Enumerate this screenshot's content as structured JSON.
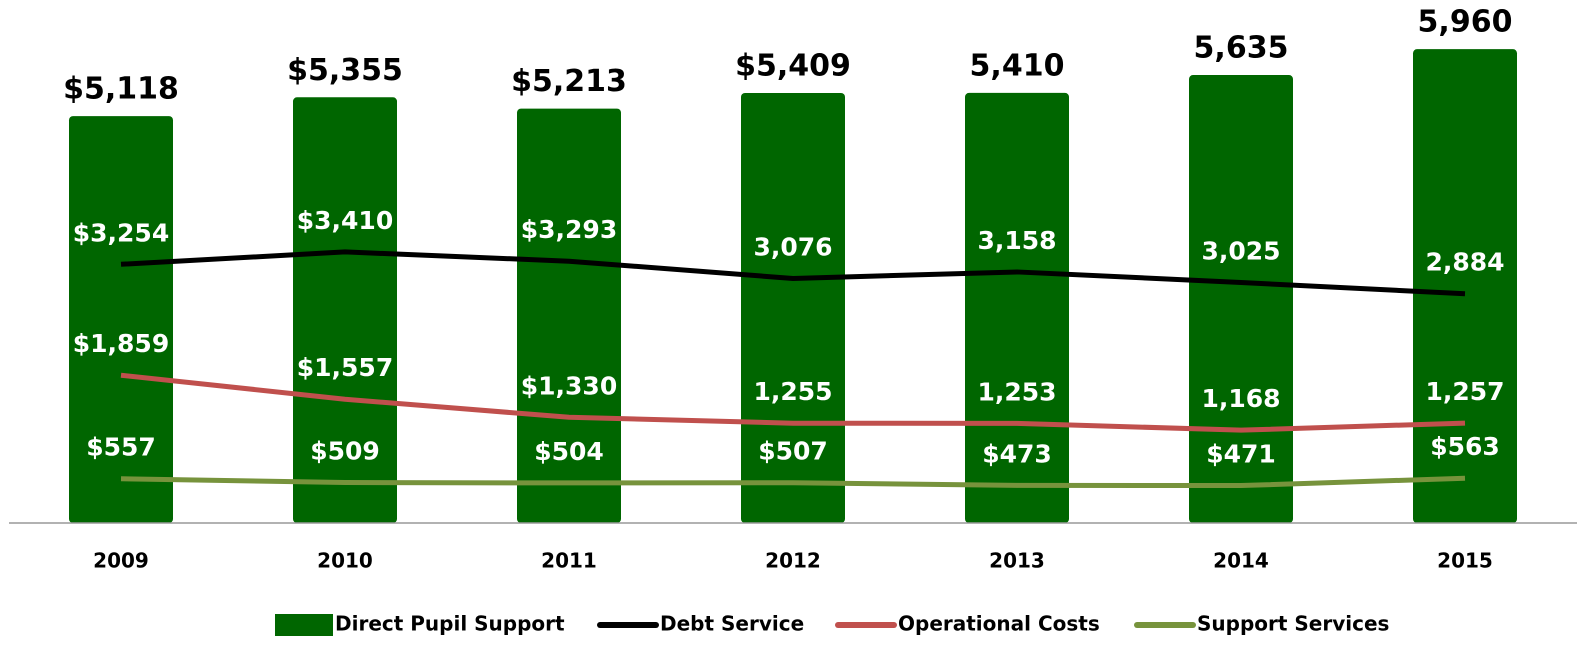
{
  "chart_data": {
    "type": "bar",
    "categories": [
      "2009",
      "2010",
      "2011",
      "2012",
      "2013",
      "2014",
      "2015"
    ],
    "series": [
      {
        "name": "Direct Pupil Support",
        "type": "bar",
        "color": "#006600",
        "values": [
          5118,
          5355,
          5213,
          5409,
          5410,
          5635,
          5960
        ],
        "value_labels": [
          "$5,118",
          "$5,355",
          "$5,213",
          "$5,409",
          "5,410",
          "5,635",
          "5,960"
        ]
      },
      {
        "name": "Debt Service",
        "type": "line",
        "color": "#000000",
        "values": [
          3254,
          3410,
          3293,
          3076,
          3158,
          3025,
          2884
        ],
        "value_labels": [
          "$3,254",
          "$3,410",
          "$3,293",
          "3,076",
          "3,158",
          "3,025",
          "2,884"
        ]
      },
      {
        "name": "Operational Costs",
        "type": "line",
        "color": "#c0504d",
        "values": [
          1859,
          1557,
          1330,
          1255,
          1253,
          1168,
          1257
        ],
        "value_labels": [
          "$1,859",
          "$1,557",
          "$1,330",
          "1,255",
          "1,253",
          "1,168",
          "1,257"
        ]
      },
      {
        "name": "Support Services",
        "type": "line",
        "color": "#77933c",
        "values": [
          557,
          509,
          504,
          507,
          473,
          471,
          563
        ],
        "value_labels": [
          "$557",
          "$509",
          "$504",
          "$507",
          "$473",
          "$471",
          "$563"
        ]
      }
    ],
    "ylim": [
      0,
      6000
    ],
    "legend": "bottom"
  }
}
